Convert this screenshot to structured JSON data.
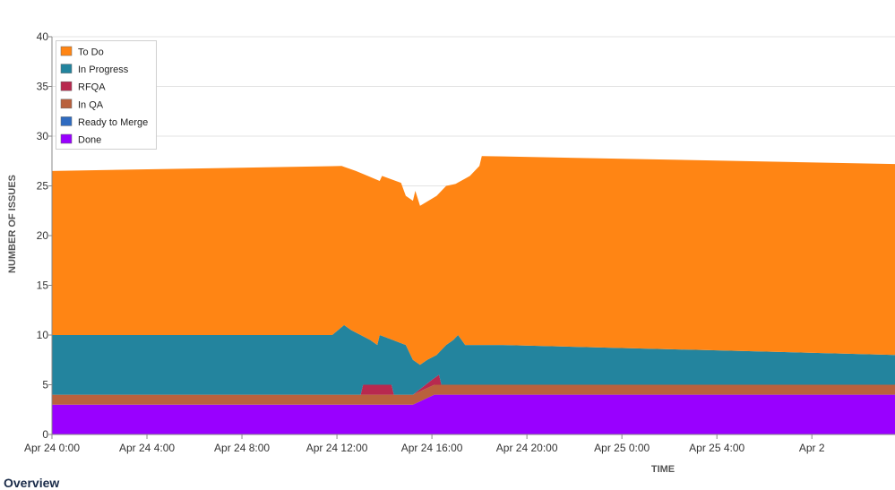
{
  "footer": {
    "overview_label": "Overview"
  },
  "chart_data": {
    "type": "area",
    "stacked": true,
    "xlabel": "TIME",
    "ylabel": "NUMBER OF ISSUES",
    "ylim": [
      0,
      40
    ],
    "yticks": [
      0,
      5,
      10,
      15,
      20,
      25,
      30,
      35,
      40
    ],
    "x_unit": "hours since Apr 24 0:00",
    "xlim": [
      0,
      35.5
    ],
    "xticks": [
      {
        "x": 0,
        "label": "Apr 24 0:00"
      },
      {
        "x": 4,
        "label": "Apr 24 4:00"
      },
      {
        "x": 8,
        "label": "Apr 24 8:00"
      },
      {
        "x": 12,
        "label": "Apr 24 12:00"
      },
      {
        "x": 16,
        "label": "Apr 24 16:00"
      },
      {
        "x": 20,
        "label": "Apr 24 20:00"
      },
      {
        "x": 24,
        "label": "Apr 25 0:00"
      },
      {
        "x": 28,
        "label": "Apr 25 4:00"
      },
      {
        "x": 32,
        "label": "Apr 2"
      }
    ],
    "grid": true,
    "legend_position": "top-left",
    "series": [
      {
        "name": "Done",
        "color": "#9900ff",
        "points": [
          [
            0,
            3
          ],
          [
            15.2,
            3
          ],
          [
            16.1,
            4
          ],
          [
            35.5,
            4
          ]
        ]
      },
      {
        "name": "Ready to Merge",
        "color": "#2f6bc0",
        "points": [
          [
            0,
            3
          ],
          [
            15.2,
            3
          ],
          [
            16.1,
            4
          ],
          [
            35.5,
            4
          ]
        ]
      },
      {
        "name": "In QA",
        "color": "#b9613d",
        "points": [
          [
            0,
            4
          ],
          [
            13.8,
            4
          ],
          [
            15.2,
            4
          ],
          [
            16.1,
            5
          ],
          [
            35.5,
            5
          ]
        ]
      },
      {
        "name": "RFQA",
        "color": "#b8294f",
        "points": [
          [
            0,
            4
          ],
          [
            13.0,
            4
          ],
          [
            13.1,
            5
          ],
          [
            14.3,
            5
          ],
          [
            14.4,
            4
          ],
          [
            15.2,
            4
          ],
          [
            16.0,
            5.5
          ],
          [
            16.3,
            6
          ],
          [
            16.4,
            5
          ],
          [
            35.5,
            5
          ]
        ]
      },
      {
        "name": "In Progress",
        "color": "#23849e",
        "points": [
          [
            0,
            10
          ],
          [
            11.8,
            10
          ],
          [
            12.3,
            11
          ],
          [
            12.6,
            10.5
          ],
          [
            13.4,
            9.5
          ],
          [
            13.7,
            9
          ],
          [
            13.8,
            10
          ],
          [
            14.9,
            9
          ],
          [
            15.2,
            7.5
          ],
          [
            15.5,
            7
          ],
          [
            15.8,
            7.5
          ],
          [
            16.2,
            8
          ],
          [
            16.6,
            9
          ],
          [
            16.9,
            9.5
          ],
          [
            17.1,
            10
          ],
          [
            17.4,
            9
          ],
          [
            19.0,
            9
          ],
          [
            35.5,
            8
          ]
        ]
      },
      {
        "name": "To Do",
        "color": "#ff8514",
        "points": [
          [
            0,
            26.5
          ],
          [
            12.2,
            27
          ],
          [
            12.8,
            26.5
          ],
          [
            13.3,
            26
          ],
          [
            13.8,
            25.5
          ],
          [
            13.9,
            26
          ],
          [
            14.7,
            25.3
          ],
          [
            14.9,
            24
          ],
          [
            15.2,
            23.5
          ],
          [
            15.3,
            24.5
          ],
          [
            15.5,
            23
          ],
          [
            16.2,
            24
          ],
          [
            16.6,
            25
          ],
          [
            17.0,
            25.2
          ],
          [
            17.6,
            26
          ],
          [
            18.0,
            27
          ],
          [
            18.1,
            28
          ],
          [
            35.5,
            27.2
          ]
        ]
      }
    ]
  }
}
